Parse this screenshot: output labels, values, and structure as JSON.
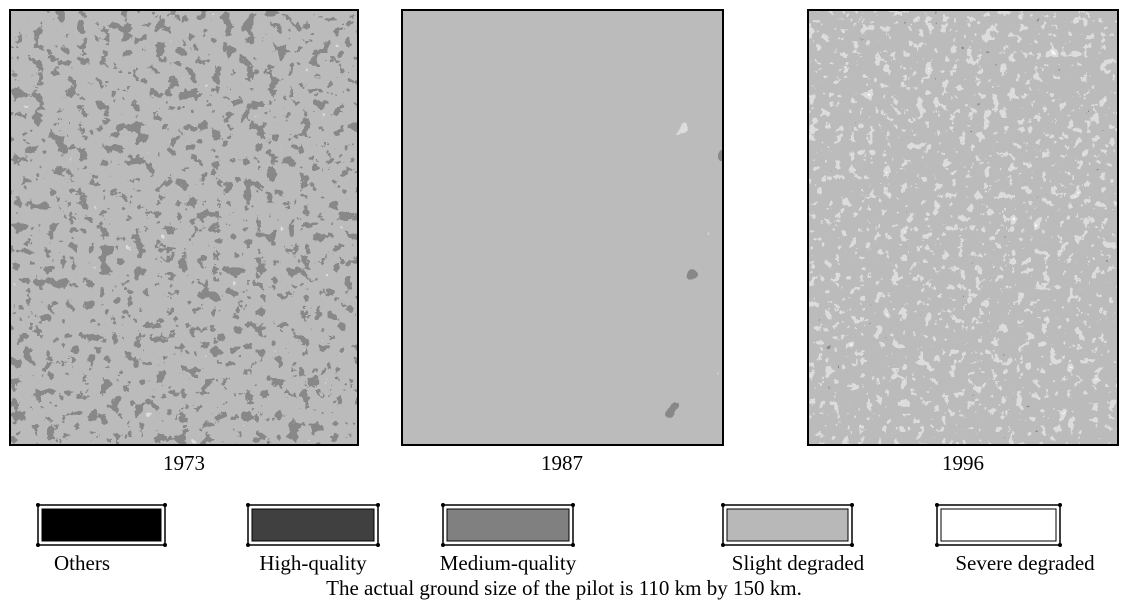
{
  "panels": [
    {
      "year": "1973"
    },
    {
      "year": "1987"
    },
    {
      "year": "1996"
    }
  ],
  "legend": [
    {
      "label": "Others",
      "color": "#000000"
    },
    {
      "label": "High-quality",
      "color": "#404040"
    },
    {
      "label": "Medium-quality",
      "color": "#808080"
    },
    {
      "label": "Slight degraded",
      "color": "#b8b8b8"
    },
    {
      "label": "Severe degraded",
      "color": "#ffffff"
    }
  ],
  "caption": "The actual ground size of the pilot is 110 km by 150 km."
}
